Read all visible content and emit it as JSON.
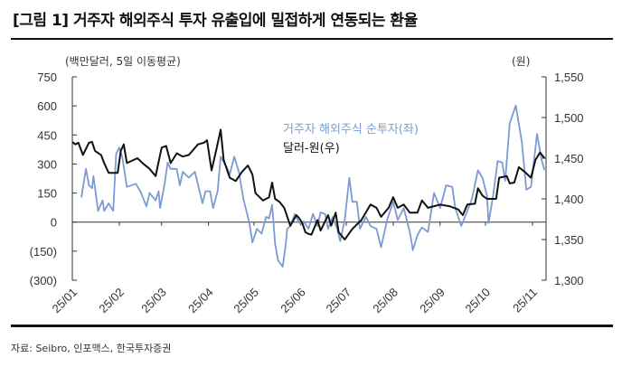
{
  "title": "[그림 1] 거주자 해외주식 투자 유출입에 밀접하게 연동되는 환율",
  "source": "자료: Seibro, 인포맥스, 한국투자증권",
  "chart_data": {
    "type": "line",
    "title": "[그림 1] 거주자 해외주식 투자 유출입에 밀접하게 연동되는 환율",
    "left_axis": {
      "unit_label": "(백만달러, 5일 이동평균)",
      "ylim": [
        -300,
        750
      ],
      "ticks": [
        750,
        600,
        450,
        300,
        150,
        0,
        -150,
        -300
      ],
      "tick_labels": [
        "750",
        "600",
        "450",
        "300",
        "150",
        "0",
        "(150)",
        "(300)"
      ]
    },
    "right_axis": {
      "unit_label": "(원)",
      "ylim": [
        1300,
        1550
      ],
      "ticks": [
        1550,
        1500,
        1450,
        1400,
        1350,
        1300
      ],
      "tick_labels": [
        "1,550",
        "1,500",
        "1,450",
        "1,400",
        "1,350",
        "1,300"
      ]
    },
    "x_axis": {
      "xlim": [
        "2025-01-01",
        "2025-11-10"
      ],
      "ticks": [
        "2025-01-01",
        "2025-02-01",
        "2025-03-01",
        "2025-04-01",
        "2025-05-01",
        "2025-06-01",
        "2025-07-01",
        "2025-08-01",
        "2025-09-01",
        "2025-10-01",
        "2025-11-01"
      ],
      "tick_labels": [
        "25/01",
        "25/02",
        "25/03",
        "25/04",
        "25/05",
        "25/06",
        "25/07",
        "25/08",
        "25/09",
        "25/10",
        "25/11"
      ]
    },
    "grid": false,
    "legend_placement": "center",
    "colors": {
      "resident_net": "#7b9bd2",
      "usdkrw": "#111111"
    },
    "series": [
      {
        "name": "거주자 해외주식 순투자(좌)",
        "axis": "left",
        "color": "#7b9bd2",
        "points": [
          [
            "2025-01-07",
            128
          ],
          [
            "2025-01-10",
            275
          ],
          [
            "2025-01-12",
            190
          ],
          [
            "2025-01-14",
            175
          ],
          [
            "2025-01-15",
            237
          ],
          [
            "2025-01-18",
            58
          ],
          [
            "2025-01-21",
            112
          ],
          [
            "2025-01-22",
            58
          ],
          [
            "2025-01-25",
            97
          ],
          [
            "2025-01-28",
            58
          ],
          [
            "2025-01-30",
            353
          ],
          [
            "2025-02-01",
            385
          ],
          [
            "2025-02-03",
            338
          ],
          [
            "2025-02-06",
            182
          ],
          [
            "2025-02-12",
            198
          ],
          [
            "2025-02-15",
            159
          ],
          [
            "2025-02-19",
            81
          ],
          [
            "2025-02-21",
            151
          ],
          [
            "2025-02-25",
            112
          ],
          [
            "2025-02-27",
            159
          ],
          [
            "2025-02-28",
            73
          ],
          [
            "2025-03-03",
            198
          ],
          [
            "2025-03-05",
            307
          ],
          [
            "2025-03-07",
            275
          ],
          [
            "2025-03-11",
            275
          ],
          [
            "2025-03-13",
            190
          ],
          [
            "2025-03-15",
            260
          ],
          [
            "2025-03-19",
            229
          ],
          [
            "2025-03-23",
            260
          ],
          [
            "2025-03-28",
            97
          ],
          [
            "2025-03-30",
            159
          ],
          [
            "2025-04-02",
            159
          ],
          [
            "2025-04-04",
            73
          ],
          [
            "2025-04-07",
            159
          ],
          [
            "2025-04-09",
            338
          ],
          [
            "2025-04-13",
            283
          ],
          [
            "2025-04-15",
            245
          ],
          [
            "2025-04-18",
            338
          ],
          [
            "2025-04-21",
            260
          ],
          [
            "2025-04-24",
            120
          ],
          [
            "2025-04-28",
            -5
          ],
          [
            "2025-04-30",
            -105
          ],
          [
            "2025-05-03",
            -35
          ],
          [
            "2025-05-06",
            -59
          ],
          [
            "2025-05-09",
            27
          ],
          [
            "2025-05-11",
            19
          ],
          [
            "2025-05-13",
            89
          ],
          [
            "2025-05-15",
            -113
          ],
          [
            "2025-05-17",
            -199
          ],
          [
            "2025-05-20",
            -230
          ],
          [
            "2025-05-22",
            -113
          ],
          [
            "2025-05-23",
            -35
          ],
          [
            "2025-05-25",
            -20
          ],
          [
            "2025-05-28",
            42
          ],
          [
            "2025-05-31",
            -5
          ],
          [
            "2025-06-03",
            3
          ],
          [
            "2025-06-06",
            -35
          ],
          [
            "2025-06-09",
            42
          ],
          [
            "2025-06-12",
            -20
          ],
          [
            "2025-06-14",
            50
          ],
          [
            "2025-06-17",
            42
          ],
          [
            "2025-06-19",
            -35
          ],
          [
            "2025-06-22",
            27
          ],
          [
            "2025-06-25",
            -35
          ],
          [
            "2025-06-27",
            -98
          ],
          [
            "2025-06-30",
            11
          ],
          [
            "2025-07-03",
            229
          ],
          [
            "2025-07-05",
            105
          ],
          [
            "2025-07-08",
            105
          ],
          [
            "2025-07-10",
            -35
          ],
          [
            "2025-07-14",
            27
          ],
          [
            "2025-07-17",
            -20
          ],
          [
            "2025-07-21",
            -35
          ],
          [
            "2025-07-24",
            -129
          ],
          [
            "2025-07-28",
            11
          ],
          [
            "2025-08-01",
            105
          ],
          [
            "2025-08-04",
            11
          ],
          [
            "2025-08-08",
            73
          ],
          [
            "2025-08-12",
            -51
          ],
          [
            "2025-08-14",
            -145
          ],
          [
            "2025-08-17",
            -67
          ],
          [
            "2025-08-20",
            -28
          ],
          [
            "2025-08-24",
            -51
          ],
          [
            "2025-08-28",
            151
          ],
          [
            "2025-09-01",
            73
          ],
          [
            "2025-09-05",
            190
          ],
          [
            "2025-09-09",
            182
          ],
          [
            "2025-09-11",
            73
          ],
          [
            "2025-09-15",
            -20
          ],
          [
            "2025-09-19",
            58
          ],
          [
            "2025-09-22",
            120
          ],
          [
            "2025-09-26",
            268
          ],
          [
            "2025-09-29",
            229
          ],
          [
            "2025-10-02",
            135
          ],
          [
            "2025-10-03",
            -5
          ],
          [
            "2025-10-06",
            135
          ],
          [
            "2025-10-09",
            315
          ],
          [
            "2025-10-12",
            307
          ],
          [
            "2025-10-14",
            213
          ],
          [
            "2025-10-17",
            509
          ],
          [
            "2025-10-21",
            602
          ],
          [
            "2025-10-25",
            415
          ],
          [
            "2025-10-28",
            167
          ],
          [
            "2025-10-31",
            182
          ],
          [
            "2025-11-04",
            455
          ],
          [
            "2025-11-07",
            322
          ],
          [
            "2025-11-09",
            268
          ]
        ]
      },
      {
        "name": "달러-원(우)",
        "axis": "right",
        "color": "#111111",
        "points": [
          [
            "2025-01-01",
            1470
          ],
          [
            "2025-01-03",
            1467
          ],
          [
            "2025-01-05",
            1469
          ],
          [
            "2025-01-08",
            1454
          ],
          [
            "2025-01-12",
            1469
          ],
          [
            "2025-01-14",
            1470
          ],
          [
            "2025-01-16",
            1459
          ],
          [
            "2025-01-20",
            1454
          ],
          [
            "2025-01-22",
            1444
          ],
          [
            "2025-01-25",
            1432
          ],
          [
            "2025-01-31",
            1432
          ],
          [
            "2025-02-02",
            1459
          ],
          [
            "2025-02-04",
            1467
          ],
          [
            "2025-02-06",
            1444
          ],
          [
            "2025-02-13",
            1450
          ],
          [
            "2025-02-17",
            1443
          ],
          [
            "2025-02-21",
            1437
          ],
          [
            "2025-02-25",
            1428
          ],
          [
            "2025-03-01",
            1463
          ],
          [
            "2025-03-04",
            1465
          ],
          [
            "2025-03-07",
            1444
          ],
          [
            "2025-03-11",
            1456
          ],
          [
            "2025-03-15",
            1452
          ],
          [
            "2025-03-19",
            1454
          ],
          [
            "2025-03-25",
            1467
          ],
          [
            "2025-03-29",
            1469
          ],
          [
            "2025-03-31",
            1472
          ],
          [
            "2025-04-03",
            1435
          ],
          [
            "2025-04-06",
            1459
          ],
          [
            "2025-04-09",
            1485
          ],
          [
            "2025-04-11",
            1448
          ],
          [
            "2025-04-15",
            1426
          ],
          [
            "2025-04-19",
            1422
          ],
          [
            "2025-04-23",
            1433
          ],
          [
            "2025-04-27",
            1441
          ],
          [
            "2025-04-30",
            1430
          ],
          [
            "2025-05-02",
            1407
          ],
          [
            "2025-05-07",
            1398
          ],
          [
            "2025-05-11",
            1402
          ],
          [
            "2025-05-13",
            1420
          ],
          [
            "2025-05-15",
            1400
          ],
          [
            "2025-05-18",
            1396
          ],
          [
            "2025-05-21",
            1389
          ],
          [
            "2025-05-25",
            1367
          ],
          [
            "2025-05-29",
            1380
          ],
          [
            "2025-05-31",
            1376
          ],
          [
            "2025-06-02",
            1370
          ],
          [
            "2025-06-04",
            1359
          ],
          [
            "2025-06-06",
            1357
          ],
          [
            "2025-06-08",
            1356
          ],
          [
            "2025-06-12",
            1374
          ],
          [
            "2025-06-14",
            1361
          ],
          [
            "2025-06-19",
            1380
          ],
          [
            "2025-06-21",
            1367
          ],
          [
            "2025-06-24",
            1383
          ],
          [
            "2025-06-26",
            1359
          ],
          [
            "2025-06-30",
            1350
          ],
          [
            "2025-07-05",
            1363
          ],
          [
            "2025-07-11",
            1374
          ],
          [
            "2025-07-17",
            1393
          ],
          [
            "2025-07-21",
            1389
          ],
          [
            "2025-07-24",
            1378
          ],
          [
            "2025-07-29",
            1389
          ],
          [
            "2025-08-01",
            1402
          ],
          [
            "2025-08-04",
            1389
          ],
          [
            "2025-08-08",
            1393
          ],
          [
            "2025-08-12",
            1383
          ],
          [
            "2025-08-17",
            1383
          ],
          [
            "2025-08-20",
            1398
          ],
          [
            "2025-08-24",
            1389
          ],
          [
            "2025-08-28",
            1391
          ],
          [
            "2025-09-01",
            1393
          ],
          [
            "2025-09-07",
            1391
          ],
          [
            "2025-09-13",
            1387
          ],
          [
            "2025-09-16",
            1380
          ],
          [
            "2025-09-19",
            1393
          ],
          [
            "2025-09-24",
            1394
          ],
          [
            "2025-09-26",
            1413
          ],
          [
            "2025-09-29",
            1404
          ],
          [
            "2025-10-02",
            1400
          ],
          [
            "2025-10-08",
            1400
          ],
          [
            "2025-10-10",
            1426
          ],
          [
            "2025-10-15",
            1428
          ],
          [
            "2025-10-17",
            1419
          ],
          [
            "2025-10-20",
            1420
          ],
          [
            "2025-10-23",
            1439
          ],
          [
            "2025-10-27",
            1433
          ],
          [
            "2025-10-31",
            1426
          ],
          [
            "2025-11-03",
            1448
          ],
          [
            "2025-11-06",
            1457
          ],
          [
            "2025-11-09",
            1450
          ]
        ]
      }
    ]
  }
}
